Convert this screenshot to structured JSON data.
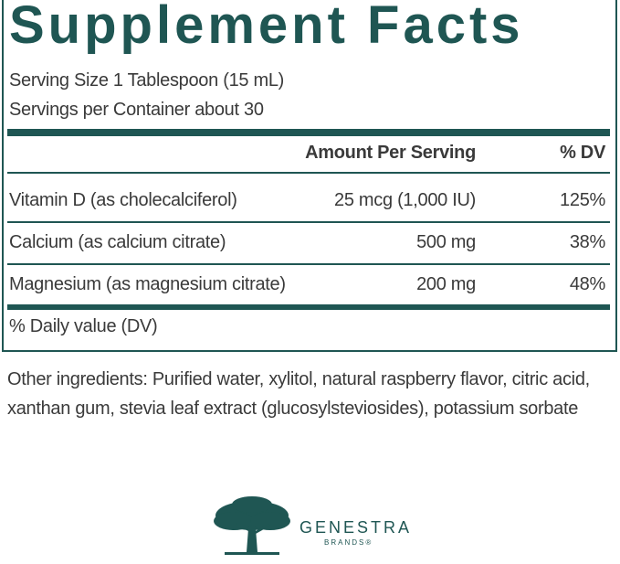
{
  "label": {
    "title": "Supplement Facts",
    "serving_size": "Serving Size 1 Tablespoon (15 mL)",
    "servings_per_container": "Servings per Container about 30",
    "table": {
      "header": [
        "Amount Per Serving",
        "% DV"
      ],
      "rows": [
        [
          "Vitamin D (as cholecalciferol)",
          "25 mcg (1,000 IU)",
          "125%"
        ],
        [
          "Calcium (as calcium citrate)",
          "500 mg",
          "38%"
        ],
        [
          "Magnesium (as magnesium citrate)",
          "200 mg",
          "48%"
        ]
      ]
    },
    "footnote": "% Daily value (DV)"
  },
  "other_ingredients": "Other ingredients: Purified water, xylitol, natural raspberry flavor, citric acid, xanthan gum, stevia leaf extract (glucosylsteviosides), potassium sorbate",
  "brand": {
    "name": "GENESTRA",
    "sub": "BRANDS®"
  }
}
